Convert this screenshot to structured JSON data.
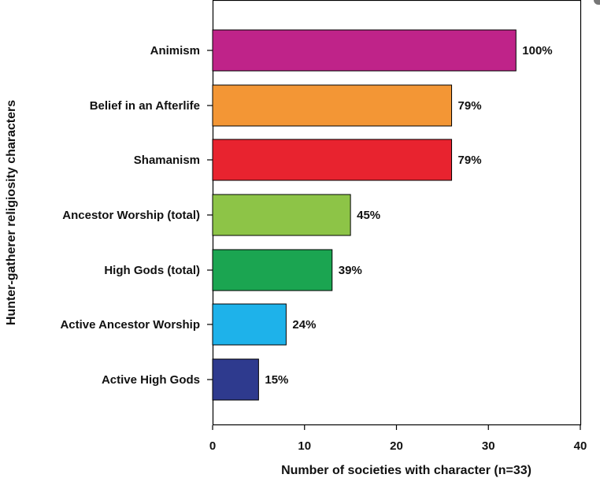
{
  "chart_data": {
    "type": "bar",
    "orientation": "horizontal",
    "categories": [
      "Animism",
      "Belief in an Afterlife",
      "Shamanism",
      "Ancestor Worship (total)",
      "High Gods (total)",
      "Active Ancestor Worship",
      "Active High Gods"
    ],
    "values": [
      33,
      26,
      26,
      15,
      13,
      8,
      5
    ],
    "value_labels": [
      "100%",
      "79%",
      "79%",
      "45%",
      "39%",
      "24%",
      "15%"
    ],
    "colors": [
      "#bf2389",
      "#f39635",
      "#e8232f",
      "#8dc447",
      "#1ba551",
      "#1eb2ea",
      "#2e3a8e"
    ],
    "xlabel": "Number of societies with character (n=33)",
    "ylabel": "Hunter-gatherer religiosity characters",
    "xlim": [
      0,
      40
    ],
    "xticks": [
      "0",
      "10",
      "20",
      "30",
      "40"
    ],
    "grid": false,
    "legend": "none"
  }
}
